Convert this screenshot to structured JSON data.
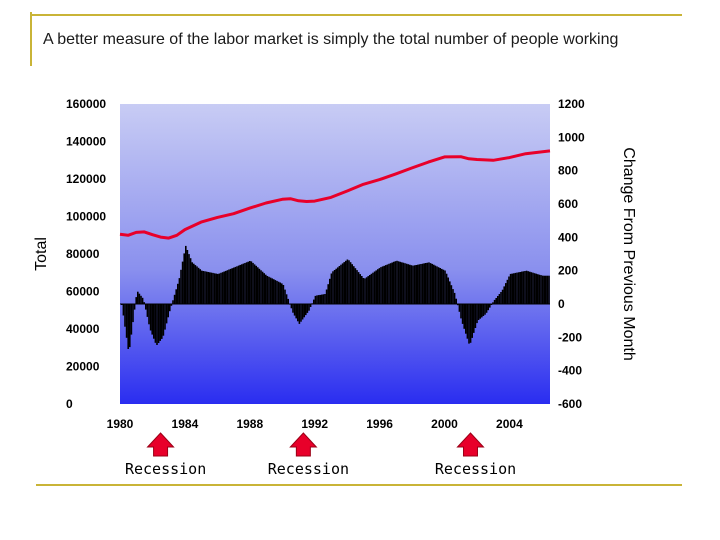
{
  "slide": {
    "title": "A better measure of the labor market is simply the total number of people working"
  },
  "chart_data": {
    "type": "bar+line",
    "ylabel": "Total",
    "y2label": "Change From Previous Month",
    "x_ticks": [
      "1980",
      "1984",
      "1988",
      "1992",
      "1996",
      "2000",
      "2004"
    ],
    "y_ticks": [
      "160000",
      "140000",
      "120000",
      "100000",
      "80000",
      "60000",
      "40000",
      "20000",
      "0"
    ],
    "y2_ticks": [
      "1200",
      "1000",
      "800",
      "600",
      "400",
      "200",
      "0",
      "-200",
      "-400",
      "-600"
    ],
    "xlim": [
      1980,
      2006.5
    ],
    "ylim": [
      0,
      160000
    ],
    "y2lim": [
      -600,
      1200
    ],
    "annotations": [
      "Recession",
      "Recession",
      "Recession"
    ],
    "recession_years": [
      1982.5,
      1991.3,
      2001.6
    ],
    "colors": {
      "line": "#e8002a",
      "bars": "#000000",
      "bg_top": "#c8ccf4",
      "bg_bottom": "#2a2df0",
      "arrow": "#e8002a"
    },
    "series": [
      {
        "name": "Total",
        "x": [
          1980,
          1980.5,
          1981,
          1981.5,
          1982,
          1982.5,
          1983,
          1983.5,
          1984,
          1984.5,
          1985,
          1986,
          1987,
          1988,
          1989,
          1990,
          1990.5,
          1991,
          1991.5,
          1992,
          1993,
          1994,
          1995,
          1996,
          1997,
          1998,
          1999,
          2000,
          2001,
          2001.5,
          2002,
          2003,
          2004,
          2005,
          2006.5
        ],
        "values": [
          90500,
          90000,
          91500,
          91800,
          90300,
          89000,
          88500,
          90000,
          93000,
          95000,
          97000,
          99500,
          101500,
          104500,
          107200,
          109200,
          109500,
          108400,
          108000,
          108200,
          110200,
          113600,
          117200,
          119700,
          122700,
          125900,
          129000,
          131800,
          131900,
          130800,
          130400,
          130000,
          131400,
          133500,
          135000
        ]
      },
      {
        "name": "Change From Previous Month",
        "x": [
          1980,
          1980.5,
          1981,
          1981.4,
          1981.8,
          1982.2,
          1982.6,
          1983,
          1983.6,
          1984,
          1984.4,
          1985,
          1986,
          1987,
          1988,
          1989,
          1990,
          1990.6,
          1991,
          1991.6,
          1992,
          1992.6,
          1993,
          1994,
          1995,
          1996,
          1997,
          1998,
          1999,
          2000,
          2000.6,
          2001,
          2001.5,
          2002,
          2002.5,
          2003,
          2003.5,
          2004,
          2005,
          2006
        ],
        "values": [
          40,
          -300,
          80,
          30,
          -150,
          -250,
          -200,
          -50,
          150,
          350,
          250,
          200,
          180,
          220,
          260,
          170,
          120,
          -50,
          -120,
          -40,
          50,
          60,
          190,
          270,
          150,
          220,
          260,
          230,
          250,
          200,
          60,
          -100,
          -250,
          -100,
          -60,
          20,
          80,
          180,
          200,
          170
        ]
      }
    ]
  }
}
